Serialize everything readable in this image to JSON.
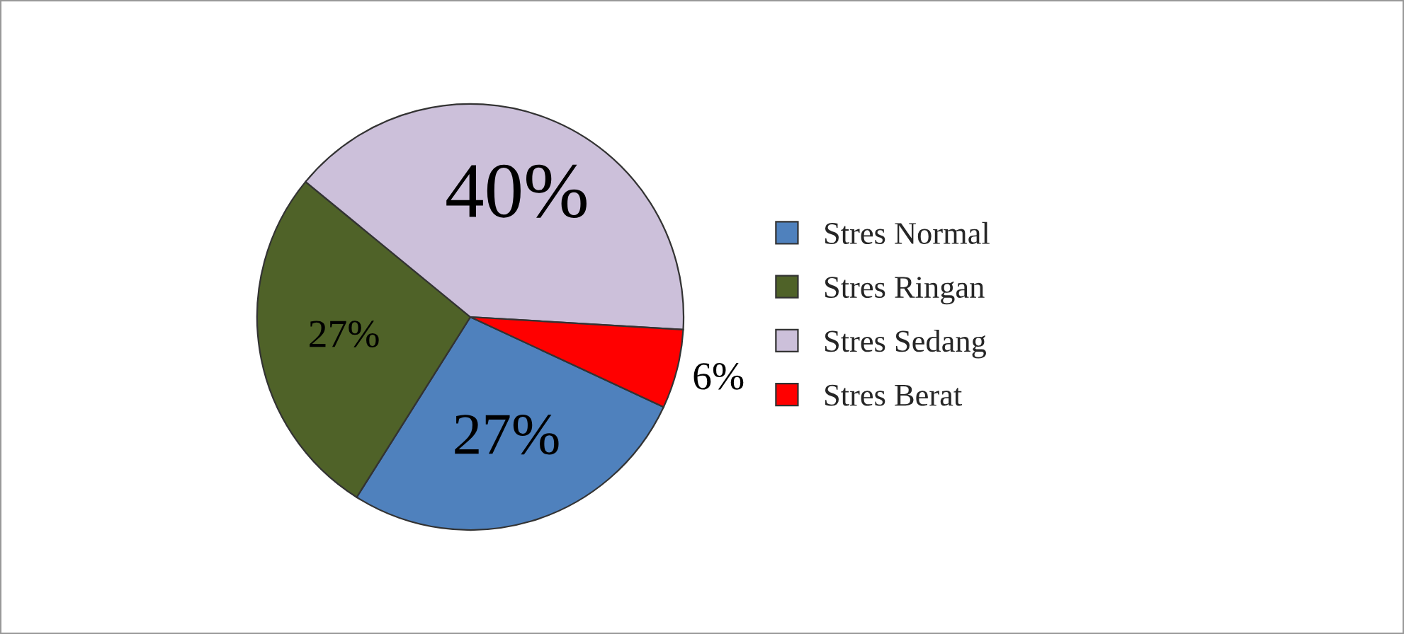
{
  "chart_data": {
    "type": "pie",
    "categories": [
      "Stres Normal",
      "Stres Ringan",
      "Stres Sedang",
      "Stres Berat"
    ],
    "values": [
      27,
      27,
      40,
      6
    ],
    "colors": [
      "#4f81bd",
      "#4f6228",
      "#ccc0da",
      "#ff0000"
    ],
    "value_labels": [
      "27%",
      "27%",
      "40%",
      "6%"
    ],
    "legend": "right"
  }
}
